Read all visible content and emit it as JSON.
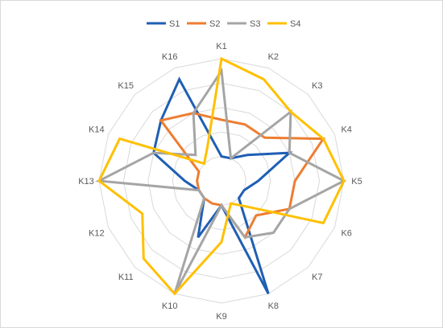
{
  "chart_data": {
    "type": "radar",
    "title": "",
    "categories": [
      "K1",
      "K2",
      "K3",
      "K4",
      "K5",
      "K6",
      "K7",
      "K8",
      "K9",
      "K10",
      "K11",
      "K12",
      "K13",
      "K14",
      "K15",
      "K16"
    ],
    "rlim": [
      0,
      5
    ],
    "ring_count": 5,
    "grid": true,
    "legend_position": "top",
    "series": [
      {
        "name": "S1",
        "color": "#1f5fb4",
        "values": [
          1,
          1,
          1.5,
          3,
          1.5,
          1,
          1,
          5,
          1,
          2.5,
          1,
          1,
          1.5,
          3,
          3.5,
          4.5
        ]
      },
      {
        "name": "S2",
        "color": "#ed7d31",
        "values": [
          2.5,
          2.5,
          2.5,
          4.5,
          3,
          3,
          2,
          2.5,
          1,
          1,
          1,
          1,
          1,
          1,
          3.5,
          3
        ]
      },
      {
        "name": "S3",
        "color": "#a5a5a5",
        "values": [
          4.5,
          1,
          4,
          3,
          5,
          3,
          3,
          2.5,
          1,
          5,
          1,
          1,
          5,
          3,
          1.5,
          3
        ]
      },
      {
        "name": "S4",
        "color": "#ffc000",
        "values": [
          5,
          4.5,
          4,
          4.5,
          5,
          4.5,
          1.5,
          1,
          2.5,
          5,
          4.5,
          3.5,
          5,
          4.5,
          1,
          1.5
        ]
      }
    ]
  }
}
